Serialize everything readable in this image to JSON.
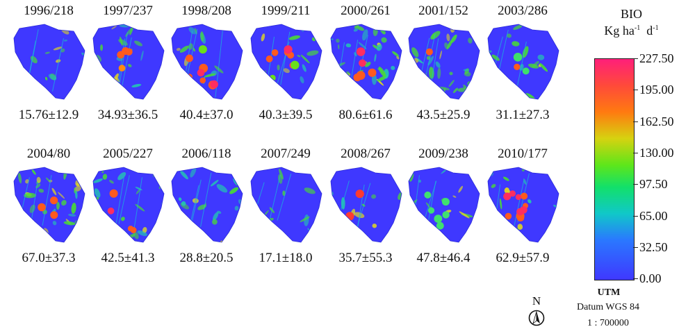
{
  "panels": [
    {
      "year_doy": "1996/218",
      "stat": "15.76±12.9",
      "dots": [],
      "greenness": 0.12
    },
    {
      "year_doy": "1997/237",
      "stat": "34.93±36.5",
      "dots": [
        {
          "c": "#ff5a1e",
          "n": 3
        },
        {
          "c": "#ff8a10",
          "n": 1
        }
      ],
      "greenness": 0.15
    },
    {
      "year_doy": "1998/208",
      "stat": "40.4±37.0",
      "dots": [
        {
          "c": "#ff5a1e",
          "n": 5
        },
        {
          "c": "#ff2e60",
          "n": 2
        },
        {
          "c": "#6adf1a",
          "n": 1
        }
      ],
      "greenness": 0.2
    },
    {
      "year_doy": "1999/211",
      "stat": "40.3±39.5",
      "dots": [
        {
          "c": "#ff5a1e",
          "n": 4
        },
        {
          "c": "#ff2e60",
          "n": 2
        },
        {
          "c": "#6adf1a",
          "n": 2
        }
      ],
      "greenness": 0.2
    },
    {
      "year_doy": "2000/261",
      "stat": "80.6±61.6",
      "dots": [
        {
          "c": "#ff5a1e",
          "n": 3
        },
        {
          "c": "#ff2e60",
          "n": 2
        }
      ],
      "greenness": 0.55
    },
    {
      "year_doy": "2001/152",
      "stat": "43.5±25.9",
      "dots": [
        {
          "c": "#ff5a1e",
          "n": 1
        }
      ],
      "greenness": 0.6
    },
    {
      "year_doy": "2003/286",
      "stat": "31.1±27.3",
      "dots": [
        {
          "c": "#ff5a1e",
          "n": 1
        },
        {
          "c": "#3ee06a",
          "n": 2
        }
      ],
      "greenness": 0.18
    },
    {
      "year_doy": "2004/80",
      "stat": "67.0±37.3",
      "dots": [
        {
          "c": "#ff5a1e",
          "n": 3
        }
      ],
      "greenness": 0.6
    },
    {
      "year_doy": "2005/227",
      "stat": "42.5±41.3",
      "dots": [
        {
          "c": "#ff5a1e",
          "n": 3
        },
        {
          "c": "#ff2e60",
          "n": 1
        }
      ],
      "greenness": 0.25
    },
    {
      "year_doy": "2006/118",
      "stat": "28.8±20.5",
      "dots": [],
      "greenness": 0.42
    },
    {
      "year_doy": "2007/249",
      "stat": "17.1±18.0",
      "dots": [],
      "greenness": 0.1
    },
    {
      "year_doy": "2008/267",
      "stat": "35.7±55.3",
      "dots": [
        {
          "c": "#ff3a30",
          "n": 2
        }
      ],
      "greenness": 0.04
    },
    {
      "year_doy": "2009/238",
      "stat": "47.8±46.4",
      "dots": [
        {
          "c": "#40e070",
          "n": 6
        }
      ],
      "greenness": 0.12
    },
    {
      "year_doy": "2010/177",
      "stat": "62.9±57.9",
      "dots": [
        {
          "c": "#ff5a1e",
          "n": 5
        },
        {
          "c": "#ff2e60",
          "n": 5
        }
      ],
      "greenness": 0.2
    }
  ],
  "legend": {
    "title": "BIO",
    "unit_base": "Kg ha",
    "unit_sup1": "-1",
    "unit_d": "d",
    "unit_sup2": "-1",
    "ticks": [
      "227.50",
      "195.00",
      "162.50",
      "130.00",
      "97.50",
      "65.00",
      "32.50",
      "0.00"
    ],
    "colors_top_to_bottom": [
      "#ff1f7a",
      "#ff4a3a",
      "#ff7a10",
      "#d6d210",
      "#5ee61a",
      "#12e06a",
      "#10c8c8",
      "#2a78ff",
      "#3f38ff"
    ]
  },
  "north_label": "N",
  "projection": "UTM",
  "datum": "Datum WGS 84",
  "scale": "1 : 700000",
  "colors": {
    "background": "#3f38ff",
    "vegetation": "#49d838",
    "water_line": "#18c0d8"
  }
}
